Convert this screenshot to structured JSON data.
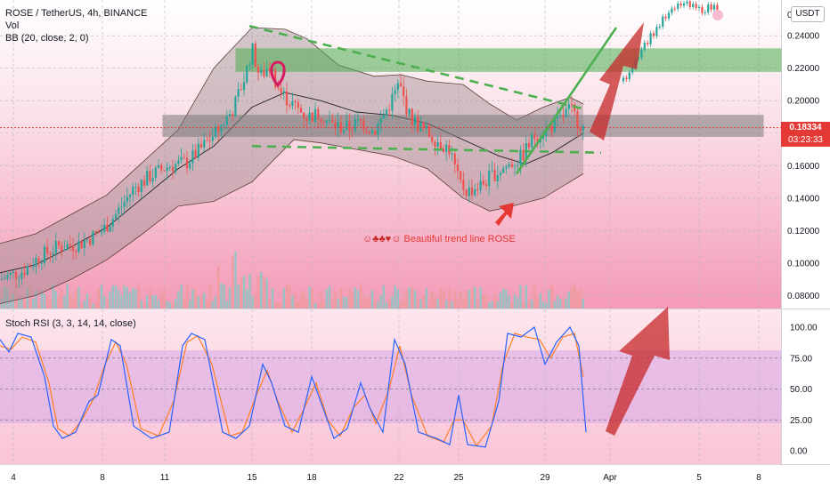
{
  "chart_data": {
    "type": "candlestick",
    "title": "ROSE / TetherUS, 4h, BINANCE",
    "indicators": [
      "Vol",
      "BB (20, close, 2, 0)"
    ],
    "currency_button": "USDT",
    "price_axis": {
      "ticks": [
        "0.24000",
        "0.22000",
        "0.20000",
        "0.18000",
        "0.16000",
        "0.14000",
        "0.12000",
        "0.10000",
        "0.08000"
      ],
      "tick_values": [
        0.24,
        0.22,
        0.2,
        0.18,
        0.16,
        0.14,
        0.12,
        0.1,
        0.08
      ],
      "top_label": "0",
      "ylim": [
        0.072,
        0.262
      ]
    },
    "current_price": {
      "value": "0.18334",
      "countdown": "03:23:33",
      "price": 0.18334
    },
    "time_axis": {
      "ticks": [
        "4",
        "8",
        "11",
        "15",
        "18",
        "22",
        "25",
        "29",
        "Apr",
        "5",
        "8"
      ],
      "tick_x": [
        15,
        115,
        185,
        283,
        350,
        448,
        515,
        612,
        685,
        785,
        852
      ]
    },
    "price_path": [
      [
        0,
        0.09
      ],
      [
        25,
        0.095
      ],
      [
        45,
        0.104
      ],
      [
        65,
        0.11
      ],
      [
        90,
        0.112
      ],
      [
        115,
        0.12
      ],
      [
        130,
        0.13
      ],
      [
        150,
        0.146
      ],
      [
        170,
        0.154
      ],
      [
        190,
        0.16
      ],
      [
        210,
        0.162
      ],
      [
        225,
        0.17
      ],
      [
        245,
        0.182
      ],
      [
        262,
        0.195
      ],
      [
        275,
        0.215
      ],
      [
        283,
        0.232
      ],
      [
        292,
        0.214
      ],
      [
        302,
        0.222
      ],
      [
        315,
        0.205
      ],
      [
        330,
        0.197
      ],
      [
        345,
        0.19
      ],
      [
        360,
        0.192
      ],
      [
        372,
        0.185
      ],
      [
        390,
        0.183
      ],
      [
        405,
        0.187
      ],
      [
        420,
        0.181
      ],
      [
        435,
        0.195
      ],
      [
        448,
        0.21
      ],
      [
        460,
        0.19
      ],
      [
        475,
        0.182
      ],
      [
        490,
        0.176
      ],
      [
        505,
        0.17
      ],
      [
        515,
        0.15
      ],
      [
        525,
        0.144
      ],
      [
        540,
        0.148
      ],
      [
        555,
        0.155
      ],
      [
        570,
        0.16
      ],
      [
        585,
        0.165
      ],
      [
        600,
        0.178
      ],
      [
        615,
        0.183
      ],
      [
        625,
        0.186
      ],
      [
        640,
        0.195
      ],
      [
        655,
        0.183
      ]
    ],
    "future_path": [
      [
        700,
        0.212
      ],
      [
        720,
        0.232
      ],
      [
        745,
        0.25
      ],
      [
        765,
        0.26
      ],
      [
        785,
        0.256
      ],
      [
        805,
        0.258
      ]
    ],
    "bollinger": {
      "upper": [
        [
          0,
          0.112
        ],
        [
          40,
          0.118
        ],
        [
          80,
          0.13
        ],
        [
          120,
          0.142
        ],
        [
          160,
          0.162
        ],
        [
          200,
          0.182
        ],
        [
          240,
          0.22
        ],
        [
          283,
          0.245
        ],
        [
          320,
          0.244
        ],
        [
          345,
          0.238
        ],
        [
          380,
          0.222
        ],
        [
          420,
          0.215
        ],
        [
          450,
          0.216
        ],
        [
          480,
          0.212
        ],
        [
          520,
          0.21
        ],
        [
          550,
          0.198
        ],
        [
          580,
          0.188
        ],
        [
          610,
          0.196
        ],
        [
          640,
          0.202
        ],
        [
          655,
          0.198
        ]
      ],
      "lower": [
        [
          0,
          0.075
        ],
        [
          40,
          0.08
        ],
        [
          80,
          0.09
        ],
        [
          120,
          0.102
        ],
        [
          160,
          0.118
        ],
        [
          200,
          0.135
        ],
        [
          240,
          0.138
        ],
        [
          283,
          0.15
        ],
        [
          310,
          0.165
        ],
        [
          330,
          0.176
        ],
        [
          360,
          0.174
        ],
        [
          400,
          0.17
        ],
        [
          440,
          0.166
        ],
        [
          480,
          0.158
        ],
        [
          520,
          0.14
        ],
        [
          550,
          0.132
        ],
        [
          575,
          0.135
        ],
        [
          610,
          0.14
        ],
        [
          640,
          0.15
        ],
        [
          655,
          0.155
        ]
      ],
      "basis": [
        [
          0,
          0.094
        ],
        [
          40,
          0.099
        ],
        [
          80,
          0.11
        ],
        [
          120,
          0.122
        ],
        [
          160,
          0.14
        ],
        [
          200,
          0.158
        ],
        [
          240,
          0.172
        ],
        [
          283,
          0.196
        ],
        [
          320,
          0.205
        ],
        [
          360,
          0.2
        ],
        [
          400,
          0.193
        ],
        [
          440,
          0.191
        ],
        [
          480,
          0.186
        ],
        [
          520,
          0.176
        ],
        [
          560,
          0.166
        ],
        [
          590,
          0.161
        ],
        [
          620,
          0.168
        ],
        [
          655,
          0.18
        ]
      ]
    },
    "zones": [
      {
        "name": "resistance-zone",
        "color": "#4caf50",
        "x": [
          265,
          877
        ],
        "y": [
          0.218,
          0.232
        ]
      },
      {
        "name": "support-zone",
        "color": "#7a7a7a",
        "x": [
          183,
          857
        ],
        "y": [
          0.178,
          0.191
        ]
      }
    ],
    "trendlines": [
      {
        "name": "descending-resistance",
        "color": "#4caf50",
        "dashed": true,
        "points": [
          [
            280,
            0.246
          ],
          [
            655,
            0.195
          ]
        ]
      },
      {
        "name": "horizontal-support",
        "color": "#4caf50",
        "dashed": true,
        "points": [
          [
            283,
            0.172
          ],
          [
            675,
            0.168
          ]
        ]
      },
      {
        "name": "ascending-trendline",
        "color": "#4caf50",
        "dashed": false,
        "points": [
          [
            580,
            0.155
          ],
          [
            692,
            0.245
          ]
        ]
      }
    ],
    "annotation_text": "Beautiful trend line ROSE",
    "rsi": {
      "label": "Stoch RSI (3, 3, 14, 14, close)",
      "ticks": [
        "100.00",
        "75.00",
        "50.00",
        "25.00",
        "0.00"
      ],
      "tick_values": [
        100,
        75,
        50,
        25,
        0
      ],
      "band": [
        20,
        80
      ],
      "k": [
        [
          0,
          90
        ],
        [
          10,
          80
        ],
        [
          20,
          95
        ],
        [
          35,
          92
        ],
        [
          50,
          60
        ],
        [
          60,
          20
        ],
        [
          70,
          10
        ],
        [
          85,
          15
        ],
        [
          100,
          40
        ],
        [
          110,
          45
        ],
        [
          125,
          90
        ],
        [
          135,
          85
        ],
        [
          150,
          20
        ],
        [
          170,
          10
        ],
        [
          190,
          15
        ],
        [
          205,
          85
        ],
        [
          215,
          95
        ],
        [
          230,
          90
        ],
        [
          250,
          15
        ],
        [
          265,
          10
        ],
        [
          280,
          20
        ],
        [
          295,
          70
        ],
        [
          305,
          55
        ],
        [
          320,
          20
        ],
        [
          335,
          15
        ],
        [
          350,
          60
        ],
        [
          360,
          40
        ],
        [
          375,
          10
        ],
        [
          390,
          18
        ],
        [
          405,
          55
        ],
        [
          415,
          35
        ],
        [
          430,
          15
        ],
        [
          443,
          90
        ],
        [
          455,
          70
        ],
        [
          470,
          15
        ],
        [
          490,
          10
        ],
        [
          505,
          5
        ],
        [
          515,
          45
        ],
        [
          525,
          5
        ],
        [
          545,
          3
        ],
        [
          560,
          40
        ],
        [
          570,
          95
        ],
        [
          585,
          92
        ],
        [
          600,
          100
        ],
        [
          612,
          70
        ],
        [
          625,
          88
        ],
        [
          640,
          100
        ],
        [
          650,
          85
        ],
        [
          658,
          15
        ]
      ],
      "d": [
        [
          0,
          85
        ],
        [
          12,
          82
        ],
        [
          25,
          92
        ],
        [
          40,
          88
        ],
        [
          55,
          55
        ],
        [
          65,
          18
        ],
        [
          78,
          12
        ],
        [
          92,
          25
        ],
        [
          105,
          42
        ],
        [
          118,
          70
        ],
        [
          130,
          88
        ],
        [
          142,
          70
        ],
        [
          158,
          18
        ],
        [
          178,
          12
        ],
        [
          195,
          40
        ],
        [
          210,
          88
        ],
        [
          222,
          93
        ],
        [
          238,
          70
        ],
        [
          258,
          12
        ],
        [
          272,
          15
        ],
        [
          288,
          45
        ],
        [
          300,
          65
        ],
        [
          312,
          40
        ],
        [
          328,
          15
        ],
        [
          342,
          35
        ],
        [
          355,
          55
        ],
        [
          368,
          25
        ],
        [
          382,
          12
        ],
        [
          397,
          35
        ],
        [
          410,
          45
        ],
        [
          422,
          22
        ],
        [
          437,
          50
        ],
        [
          449,
          85
        ],
        [
          462,
          45
        ],
        [
          480,
          12
        ],
        [
          498,
          7
        ],
        [
          510,
          25
        ],
        [
          520,
          25
        ],
        [
          535,
          4
        ],
        [
          552,
          20
        ],
        [
          565,
          70
        ],
        [
          578,
          95
        ],
        [
          592,
          92
        ],
        [
          606,
          90
        ],
        [
          618,
          75
        ],
        [
          632,
          92
        ],
        [
          645,
          95
        ],
        [
          655,
          60
        ]
      ]
    }
  }
}
